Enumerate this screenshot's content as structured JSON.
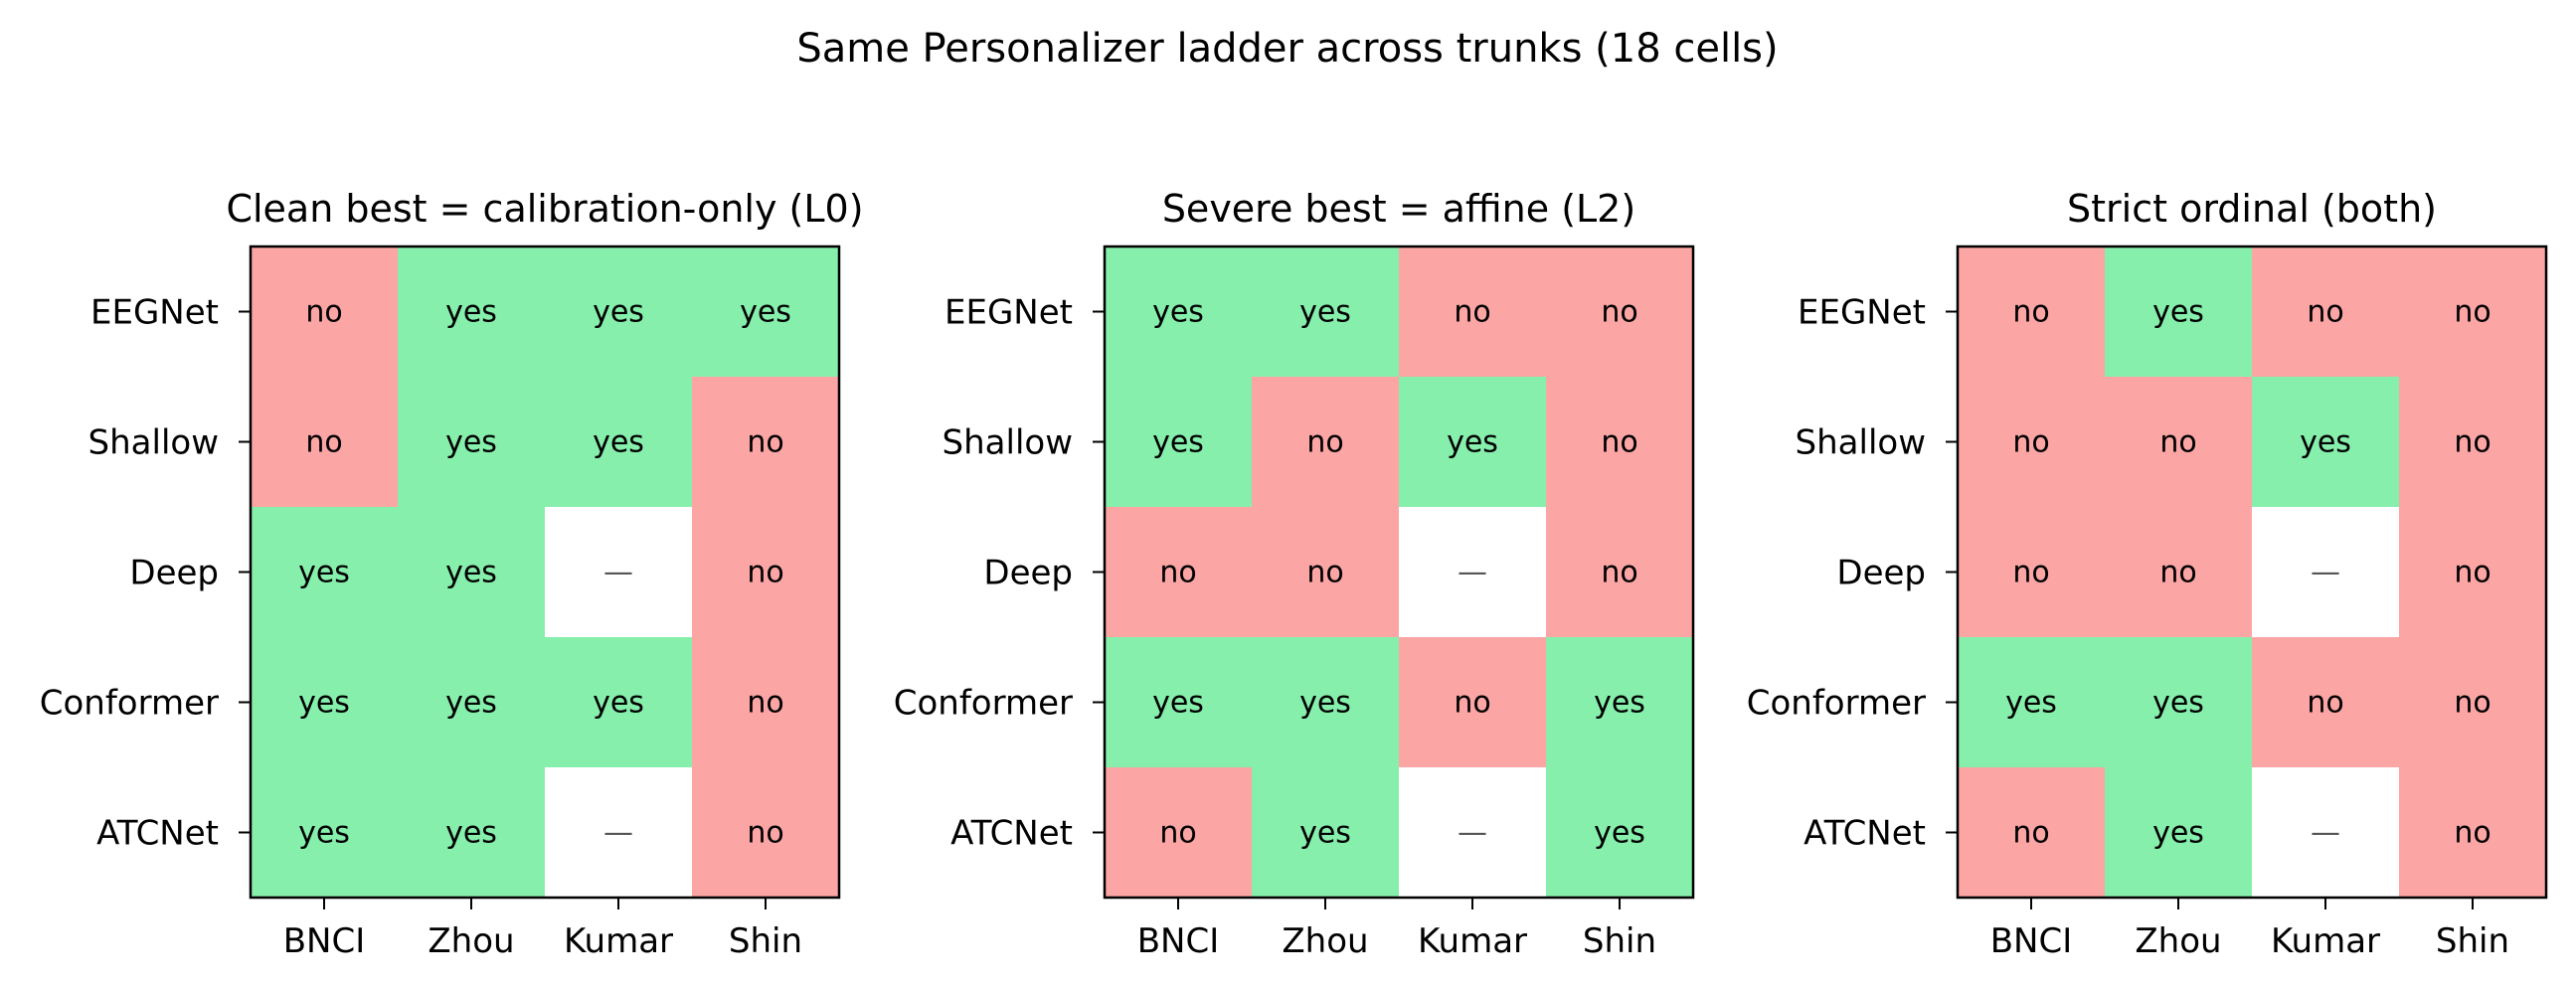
{
  "colors": {
    "yes": "#86efac",
    "no": "#fca5a5",
    "na": "#ffffff"
  },
  "chart_data": {
    "type": "heatmap",
    "title": "Same Personalizer ladder across trunks (18 cells)",
    "rows": [
      "EEGNet",
      "Shallow",
      "Deep",
      "Conformer",
      "ATCNet"
    ],
    "columns": [
      "BNCI",
      "Zhou",
      "Kumar",
      "Shin"
    ],
    "panels": [
      {
        "title": "Clean best = calibration-only (L0)",
        "values": [
          [
            "no",
            "yes",
            "yes",
            "yes"
          ],
          [
            "no",
            "yes",
            "yes",
            "no"
          ],
          [
            "yes",
            "yes",
            "—",
            "no"
          ],
          [
            "yes",
            "yes",
            "yes",
            "no"
          ],
          [
            "yes",
            "yes",
            "—",
            "no"
          ]
        ]
      },
      {
        "title": "Severe best = affine (L2)",
        "values": [
          [
            "yes",
            "yes",
            "no",
            "no"
          ],
          [
            "yes",
            "no",
            "yes",
            "no"
          ],
          [
            "no",
            "no",
            "—",
            "no"
          ],
          [
            "yes",
            "yes",
            "no",
            "yes"
          ],
          [
            "no",
            "yes",
            "—",
            "yes"
          ]
        ]
      },
      {
        "title": "Strict ordinal (both)",
        "values": [
          [
            "no",
            "yes",
            "no",
            "no"
          ],
          [
            "no",
            "no",
            "yes",
            "no"
          ],
          [
            "no",
            "no",
            "—",
            "no"
          ],
          [
            "yes",
            "yes",
            "no",
            "no"
          ],
          [
            "no",
            "yes",
            "—",
            "no"
          ]
        ]
      }
    ]
  }
}
